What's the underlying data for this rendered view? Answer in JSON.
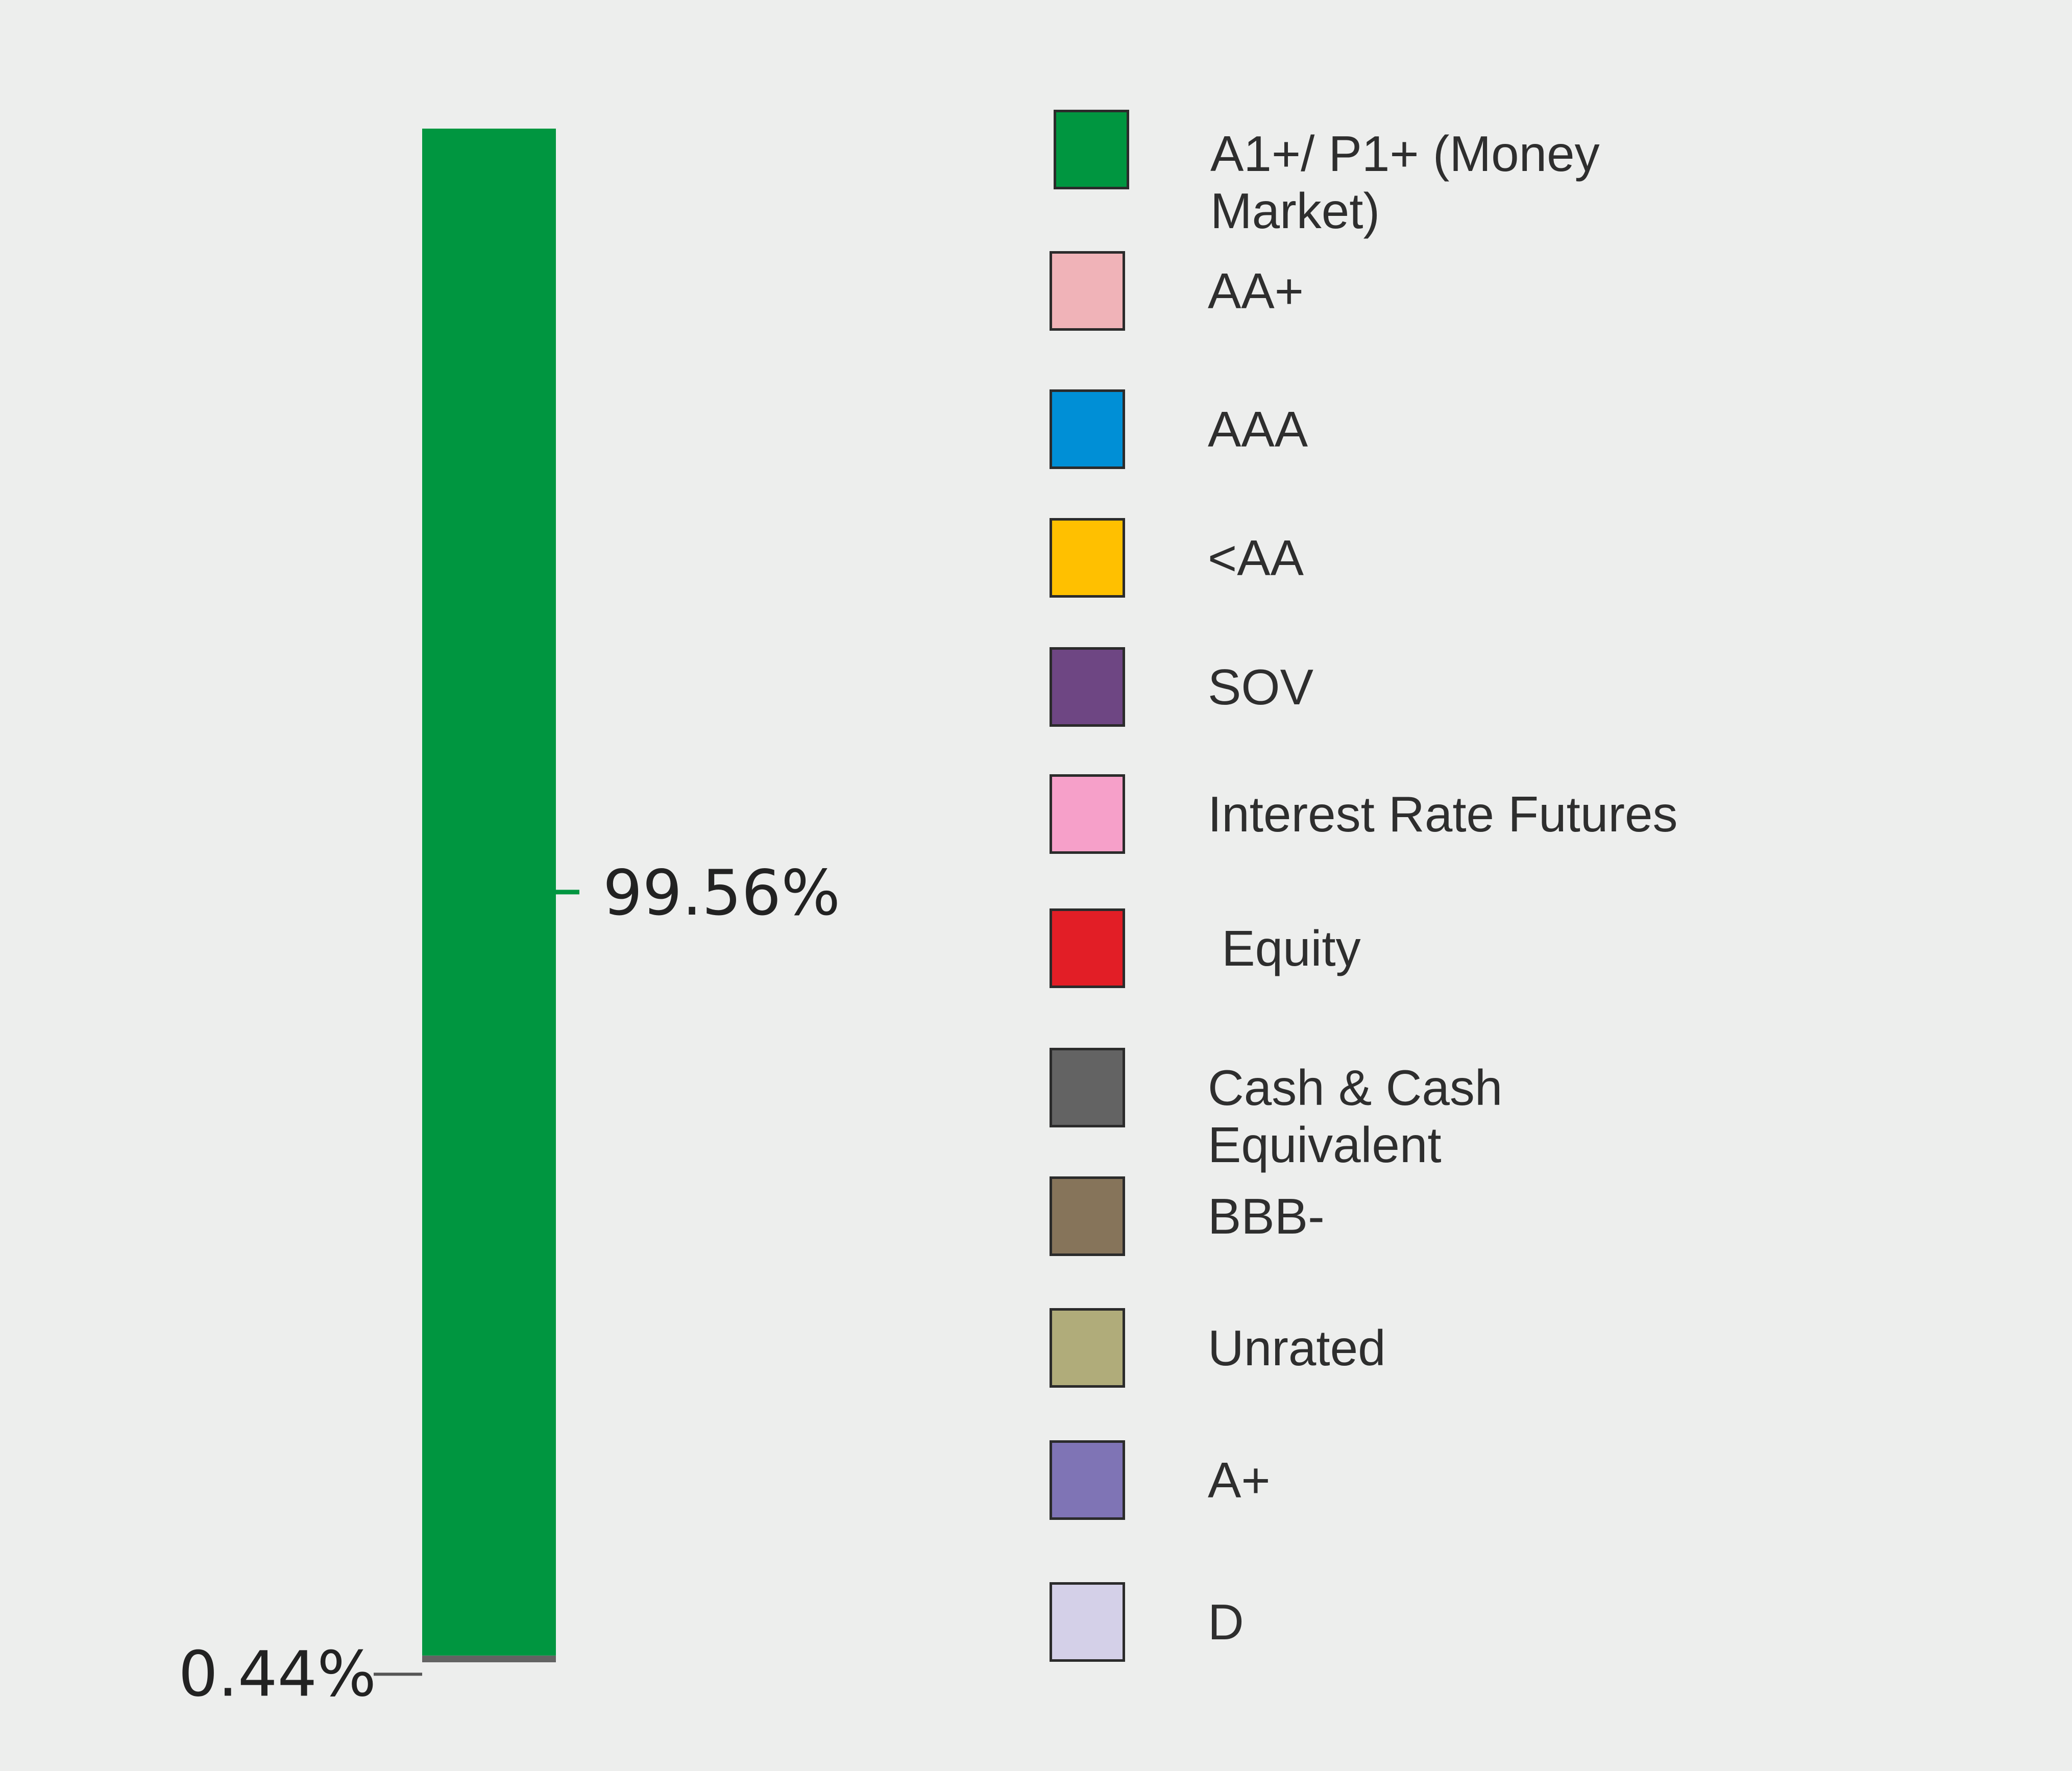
{
  "chart_data": {
    "type": "bar",
    "stacked": true,
    "orientation": "vertical",
    "categories": [
      ""
    ],
    "series": [
      {
        "name": "A1+/ P1+ (Money Market)",
        "values": [
          99.56
        ],
        "color": "#009640",
        "label": "99.56%"
      },
      {
        "name": "Cash & Cash Equivalent",
        "values": [
          0.44
        ],
        "color": "#636363",
        "label": "0.44%"
      }
    ],
    "ylim": [
      0,
      100
    ],
    "legend": [
      {
        "label": "A1+/ P1+ (Money\nMarket)",
        "color": "#009640"
      },
      {
        "label": "AA+",
        "color": "#f0b3b8"
      },
      {
        "label": "AAA",
        "color": "#008fd6"
      },
      {
        "label": "<AA",
        "color": "#ffc000"
      },
      {
        "label": "SOV",
        "color": "#6e4683"
      },
      {
        "label": "Interest Rate Futures",
        "color": "#f6a0c9"
      },
      {
        "label": " Equity",
        "color": "#e21e26"
      },
      {
        "label": "Cash & Cash Equivalent",
        "color": "#636363"
      },
      {
        "label": "BBB-",
        "color": "#86745a"
      },
      {
        "label": "Unrated",
        "color": "#b0ac7a"
      },
      {
        "label": "A+",
        "color": "#7f74b5"
      },
      {
        "label": "D",
        "color": "#d4d0e8"
      }
    ],
    "legend_position": "right",
    "grid": false
  }
}
